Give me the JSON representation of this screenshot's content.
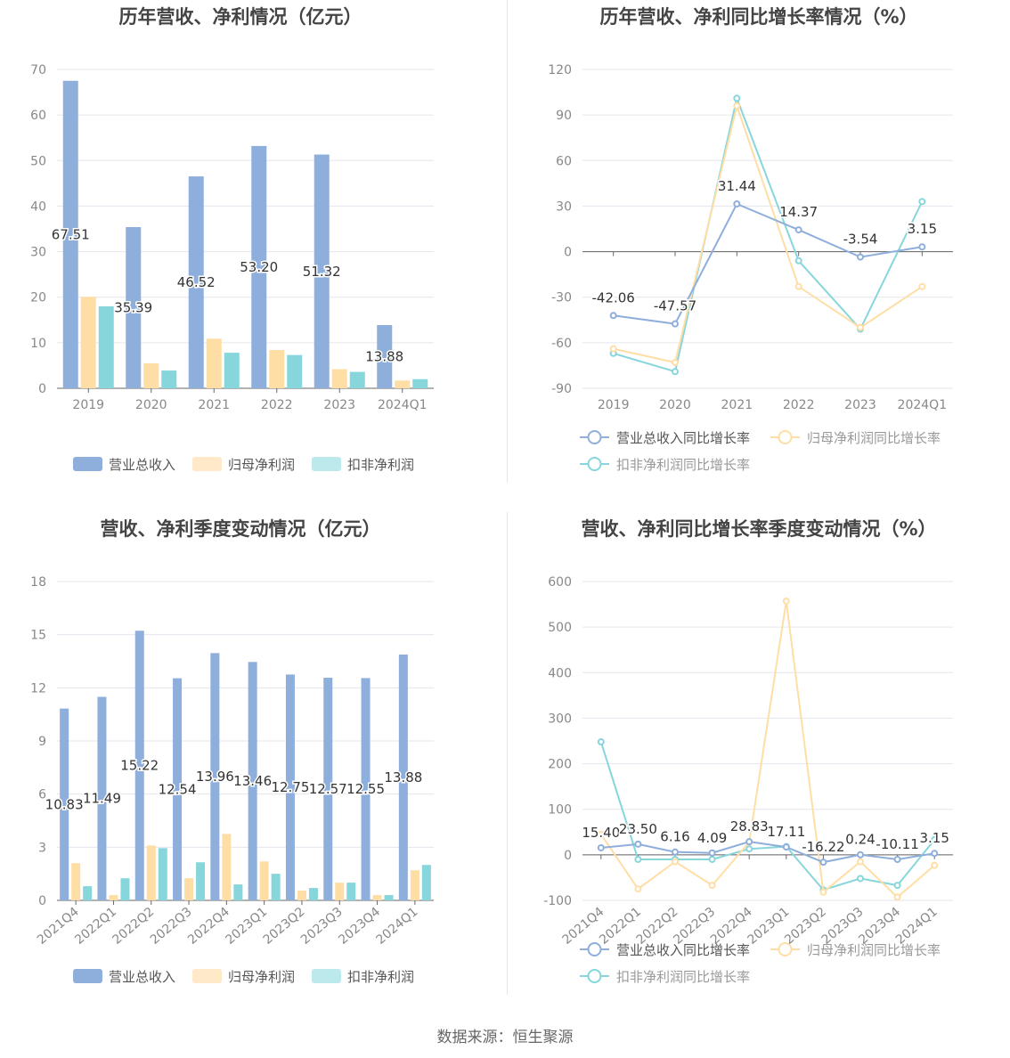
{
  "source": "数据来源：恒生聚源",
  "series_colors": {
    "revenue": "#8eaedc",
    "net_profit": "#ffdea6",
    "deducted_profit": "#86d6db",
    "deducted_profit_legend": "#bce9ec",
    "net_profit_legend": "#ffe9c8"
  },
  "legend_labels": {
    "revenue": "营业总收入",
    "net_profit": "归母净利润",
    "deducted_profit": "扣非净利润",
    "revenue_growth": "营业总收入同比增长率",
    "net_profit_growth": "归母净利润同比增长率",
    "deducted_profit_growth": "扣非净利润同比增长率"
  },
  "chart_data": [
    {
      "type": "bar",
      "title": "历年营收、净利情况（亿元）",
      "categories": [
        "2019",
        "2020",
        "2021",
        "2022",
        "2023",
        "2024Q1"
      ],
      "ylim": [
        0,
        70
      ],
      "yticks": [
        0,
        10,
        20,
        30,
        40,
        50,
        60,
        70
      ],
      "grid": true,
      "legend_position": "bottom",
      "series": [
        {
          "name": "营业总收入",
          "values": [
            67.51,
            35.39,
            46.52,
            53.2,
            51.32,
            13.88
          ],
          "labels": [
            "67.51",
            "35.39",
            "46.52",
            "53.20",
            "51.32",
            "13.88"
          ]
        },
        {
          "name": "归母净利润",
          "values": [
            20.1,
            5.5,
            10.9,
            8.4,
            4.2,
            1.7
          ]
        },
        {
          "name": "扣非净利润",
          "values": [
            18.0,
            3.9,
            7.8,
            7.3,
            3.6,
            2.0
          ]
        }
      ]
    },
    {
      "type": "line",
      "title": "历年营收、净利同比增长率情况（%）",
      "categories": [
        "2019",
        "2020",
        "2021",
        "2022",
        "2023",
        "2024Q1"
      ],
      "ylim": [
        -90,
        120
      ],
      "yticks": [
        -90,
        -60,
        -30,
        0,
        30,
        60,
        90,
        120
      ],
      "grid": true,
      "legend_position": "bottom",
      "series": [
        {
          "name": "营业总收入同比增长率",
          "values": [
            -42.06,
            -47.57,
            31.44,
            14.37,
            -3.54,
            3.15
          ],
          "labels": [
            "-42.06",
            "-47.57",
            "31.44",
            "14.37",
            "-3.54",
            "3.15"
          ]
        },
        {
          "name": "归母净利润同比增长率",
          "values": [
            -64,
            -73,
            96,
            -23,
            -50,
            -23
          ]
        },
        {
          "name": "扣非净利润同比增长率",
          "values": [
            -67,
            -79,
            101,
            -6,
            -51,
            33
          ]
        }
      ]
    },
    {
      "type": "bar",
      "title": "营收、净利季度变动情况（亿元）",
      "categories": [
        "2021Q4",
        "2022Q1",
        "2022Q2",
        "2022Q3",
        "2022Q4",
        "2023Q1",
        "2023Q2",
        "2023Q3",
        "2023Q4",
        "2024Q1"
      ],
      "ylim": [
        0,
        18
      ],
      "yticks": [
        0,
        3,
        6,
        9,
        12,
        15,
        18
      ],
      "grid": true,
      "legend_position": "bottom",
      "series": [
        {
          "name": "营业总收入",
          "values": [
            10.83,
            11.49,
            15.22,
            12.54,
            13.96,
            13.46,
            12.75,
            12.57,
            12.55,
            13.88
          ],
          "labels": [
            "10.83",
            "11.49",
            "15.22",
            "12.54",
            "13.96",
            "13.46",
            "12.75",
            "12.57",
            "12.55",
            "13.88"
          ]
        },
        {
          "name": "归母净利润",
          "values": [
            2.1,
            0.3,
            3.1,
            1.25,
            3.75,
            2.2,
            0.55,
            1.0,
            0.3,
            1.7
          ]
        },
        {
          "name": "扣非净利润",
          "values": [
            0.8,
            1.25,
            2.95,
            2.15,
            0.9,
            1.5,
            0.7,
            1.0,
            0.3,
            2.0
          ]
        }
      ]
    },
    {
      "type": "line",
      "title": "营收、净利同比增长率季度变动情况（%）",
      "categories": [
        "2021Q4",
        "2022Q1",
        "2022Q2",
        "2022Q3",
        "2022Q4",
        "2023Q1",
        "2023Q2",
        "2023Q3",
        "2023Q4",
        "2024Q1"
      ],
      "ylim": [
        -100,
        600
      ],
      "yticks": [
        -100,
        0,
        100,
        200,
        300,
        400,
        500,
        600
      ],
      "grid": true,
      "legend_position": "bottom",
      "series": [
        {
          "name": "营业总收入同比增长率",
          "values": [
            15.4,
            23.5,
            6.16,
            4.09,
            28.83,
            17.11,
            -16.22,
            0.24,
            -10.11,
            3.15
          ],
          "labels": [
            "15.40",
            "23.50",
            "6.16",
            "4.09",
            "28.83",
            "17.11",
            "-16.22",
            "0.24",
            "-10.11",
            "3.15"
          ]
        },
        {
          "name": "归母净利润同比增长率",
          "values": [
            45,
            -75,
            -15,
            -67,
            28,
            557,
            -82,
            -15,
            -93,
            -23
          ]
        },
        {
          "name": "扣非净利润同比增长率",
          "values": [
            248,
            -10,
            -10,
            -10,
            13,
            18,
            -77,
            -52,
            -67,
            33
          ]
        }
      ]
    }
  ]
}
